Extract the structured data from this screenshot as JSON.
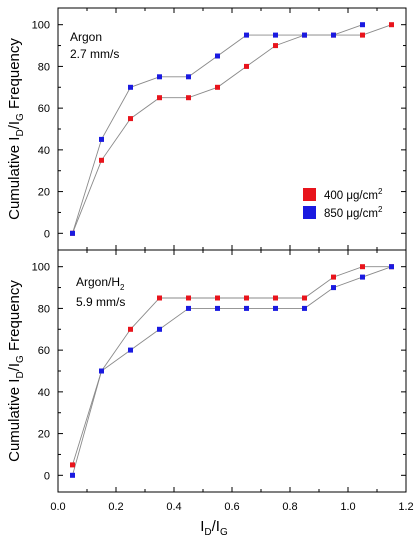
{
  "colors": {
    "s400": "#e8141c",
    "s850": "#1a1ae0",
    "line": "#8a8a8a"
  },
  "axis": {
    "xticks": [
      "0.0",
      "0.2",
      "0.4",
      "0.6",
      "0.8",
      "1.0",
      "1.2"
    ],
    "xlim": [
      0.0,
      1.2
    ],
    "xlabel": {
      "main": "I",
      "sub1": "D",
      "slash": "/I",
      "sub2": "G"
    },
    "ylabel": {
      "p1": "Cumulative I",
      "s1": "D",
      "p2": "/I",
      "s2": "G",
      "p3": " Frequency"
    }
  },
  "legend": {
    "items": [
      {
        "label": "400 μg/cm",
        "sup": "2",
        "color": "s400"
      },
      {
        "label": "850 μg/cm",
        "sup": "2",
        "color": "s850"
      }
    ]
  },
  "chart_data": [
    {
      "type": "line",
      "panel": "top",
      "annotation": {
        "line1": "Argon",
        "line2": "2.7 mm/s"
      },
      "ylim": [
        -8,
        108
      ],
      "yticks": [
        "0",
        "20",
        "40",
        "60",
        "80",
        "100"
      ],
      "x": [
        0.05,
        0.15,
        0.25,
        0.35,
        0.45,
        0.55,
        0.65,
        0.75,
        0.85,
        0.95,
        1.05,
        1.15
      ],
      "series": [
        {
          "name": "400 μg/cm²",
          "x": [
            0.05,
            0.15,
            0.25,
            0.35,
            0.45,
            0.55,
            0.65,
            0.75,
            0.85,
            0.95,
            1.05,
            1.15
          ],
          "values": [
            0,
            35,
            55,
            65,
            65,
            70,
            80,
            90,
            95,
            95,
            95,
            100
          ]
        },
        {
          "name": "850 μg/cm²",
          "x": [
            0.05,
            0.15,
            0.25,
            0.35,
            0.45,
            0.55,
            0.65,
            0.75,
            0.85,
            0.95,
            1.05
          ],
          "values": [
            0,
            45,
            70,
            75,
            75,
            85,
            95,
            95,
            95,
            95,
            100
          ]
        }
      ]
    },
    {
      "type": "line",
      "panel": "bottom",
      "annotation": {
        "line1": "Argon/H",
        "sub": "2",
        "line2": "5.9 mm/s"
      },
      "ylim": [
        -8,
        108
      ],
      "yticks": [
        "0",
        "20",
        "40",
        "60",
        "80",
        "100"
      ],
      "x": [
        0.05,
        0.15,
        0.25,
        0.35,
        0.45,
        0.55,
        0.65,
        0.75,
        0.85,
        0.95,
        1.05,
        1.15
      ],
      "series": [
        {
          "name": "400 μg/cm²",
          "x": [
            0.05,
            0.15,
            0.25,
            0.35,
            0.45,
            0.55,
            0.65,
            0.75,
            0.85,
            0.95,
            1.05,
            1.15
          ],
          "values": [
            5,
            50,
            70,
            85,
            85,
            85,
            85,
            85,
            85,
            95,
            100,
            100
          ]
        },
        {
          "name": "850 μg/cm²",
          "x": [
            0.05,
            0.15,
            0.25,
            0.35,
            0.45,
            0.55,
            0.65,
            0.75,
            0.85,
            0.95,
            1.05,
            1.15
          ],
          "values": [
            0,
            50,
            60,
            70,
            80,
            80,
            80,
            80,
            80,
            90,
            95,
            100
          ]
        }
      ]
    }
  ]
}
